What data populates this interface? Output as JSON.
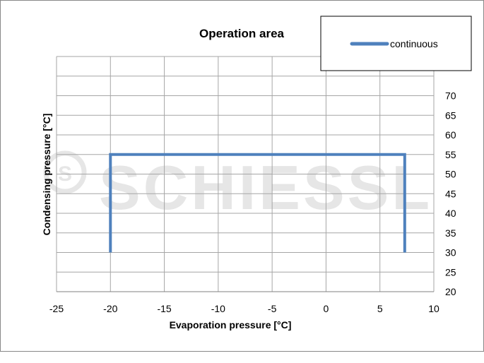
{
  "chart_data": {
    "type": "line",
    "title": "Operation area",
    "xlabel": "Evaporation pressure [°C]",
    "ylabel": "Condensing pressure [°C]",
    "xlim": [
      -25,
      10
    ],
    "ylim": [
      20,
      80
    ],
    "x_ticks": [
      -25,
      -20,
      -15,
      -10,
      -5,
      0,
      5,
      10
    ],
    "y_ticks": [
      20,
      25,
      30,
      35,
      40,
      45,
      50,
      55,
      60,
      65,
      70
    ],
    "y_axis_side": "right",
    "grid": true,
    "legend_position": "top-right",
    "series": [
      {
        "name": "continuous",
        "color": "#4f81bd",
        "points": [
          {
            "x": -20,
            "y": 30
          },
          {
            "x": -20,
            "y": 55
          },
          {
            "x": 7.3,
            "y": 55
          },
          {
            "x": 7.3,
            "y": 30
          }
        ]
      }
    ],
    "watermark": "SCHIESSL"
  }
}
